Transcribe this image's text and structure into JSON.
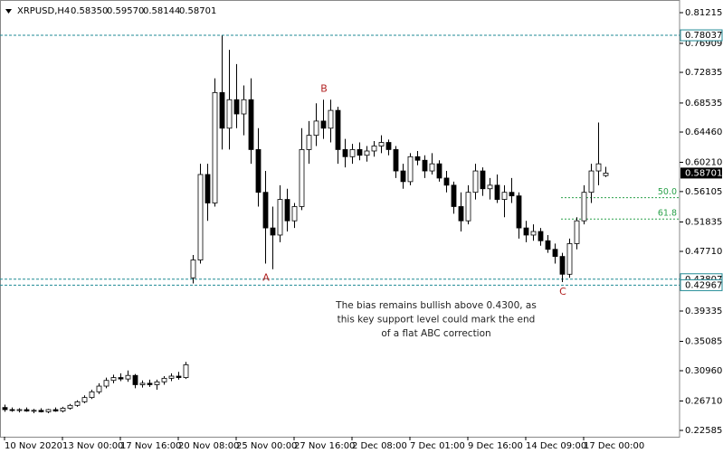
{
  "chart_data": {
    "type": "candlestick",
    "header": {
      "symbol": "XRPUSD,H4",
      "ohlc": [
        "0.58350",
        "0.59570",
        "0.58144",
        "0.58701"
      ]
    },
    "categories": [
      "10 Nov 2020",
      null,
      null,
      null,
      null,
      null,
      null,
      null,
      "13 Nov 00:00",
      null,
      null,
      null,
      null,
      null,
      null,
      null,
      "17 Nov 16:00",
      null,
      null,
      null,
      null,
      null,
      null,
      null,
      "20 Nov 08:00",
      null,
      null,
      null,
      null,
      null,
      null,
      null,
      "25 Nov 00:00",
      null,
      null,
      null,
      null,
      null,
      null,
      null,
      "27 Nov 16:00",
      null,
      null,
      null,
      null,
      null,
      null,
      null,
      "2 Dec 08:00",
      null,
      null,
      null,
      null,
      null,
      null,
      null,
      "7 Dec 01:00",
      null,
      null,
      null,
      null,
      null,
      null,
      null,
      "9 Dec 16:00",
      null,
      null,
      null,
      null,
      null,
      null,
      null,
      "14 Dec 09:00",
      null,
      null,
      null,
      null,
      null,
      null,
      null,
      "17 Dec 00:00",
      null,
      null,
      null
    ],
    "open": [
      0.258,
      0.255,
      0.254,
      0.255,
      0.253,
      0.254,
      0.252,
      0.255,
      0.253,
      0.257,
      0.261,
      0.266,
      0.272,
      0.28,
      0.288,
      0.296,
      0.3,
      0.298,
      0.303,
      0.29,
      0.292,
      0.29,
      0.294,
      0.299,
      0.302,
      0.3,
      0.44,
      0.465,
      0.585,
      0.545,
      0.7,
      0.65,
      0.69,
      0.67,
      0.69,
      0.62,
      0.56,
      0.51,
      0.5,
      0.55,
      0.52,
      0.54,
      0.62,
      0.64,
      0.66,
      0.65,
      0.675,
      0.62,
      0.61,
      0.62,
      0.612,
      0.618,
      0.625,
      0.63,
      0.62,
      0.59,
      0.575,
      0.61,
      0.605,
      0.59,
      0.6,
      0.58,
      0.57,
      0.54,
      0.52,
      0.56,
      0.59,
      0.565,
      0.57,
      0.55,
      0.56,
      0.555,
      0.51,
      0.5,
      0.505,
      0.492,
      0.48,
      0.47,
      0.445,
      0.488,
      0.52,
      0.56,
      0.59,
      0.5835
    ],
    "high": [
      0.262,
      0.258,
      0.257,
      0.258,
      0.256,
      0.257,
      0.256,
      0.258,
      0.259,
      0.263,
      0.268,
      0.275,
      0.283,
      0.292,
      0.3,
      0.304,
      0.306,
      0.31,
      0.305,
      0.296,
      0.297,
      0.297,
      0.302,
      0.306,
      0.308,
      0.322,
      0.472,
      0.6,
      0.6,
      0.72,
      0.78,
      0.76,
      0.74,
      0.71,
      0.72,
      0.65,
      0.59,
      0.54,
      0.57,
      0.565,
      0.545,
      0.65,
      0.66,
      0.685,
      0.69,
      0.69,
      0.68,
      0.635,
      0.628,
      0.63,
      0.625,
      0.632,
      0.64,
      0.634,
      0.625,
      0.6,
      0.615,
      0.618,
      0.612,
      0.615,
      0.605,
      0.59,
      0.575,
      0.56,
      0.57,
      0.6,
      0.595,
      0.58,
      0.585,
      0.57,
      0.58,
      0.56,
      0.52,
      0.515,
      0.51,
      0.5,
      0.488,
      0.475,
      0.495,
      0.525,
      0.57,
      0.6,
      0.658,
      0.5957
    ],
    "low": [
      0.252,
      0.252,
      0.251,
      0.252,
      0.25,
      0.251,
      0.25,
      0.252,
      0.251,
      0.255,
      0.259,
      0.264,
      0.27,
      0.277,
      0.285,
      0.292,
      0.295,
      0.294,
      0.285,
      0.286,
      0.287,
      0.283,
      0.29,
      0.295,
      0.297,
      0.298,
      0.432,
      0.46,
      0.52,
      0.54,
      0.62,
      0.62,
      0.65,
      0.64,
      0.6,
      0.54,
      0.46,
      0.452,
      0.49,
      0.505,
      0.51,
      0.535,
      0.6,
      0.625,
      0.635,
      0.63,
      0.6,
      0.595,
      0.6,
      0.605,
      0.603,
      0.61,
      0.615,
      0.612,
      0.58,
      0.565,
      0.57,
      0.598,
      0.58,
      0.585,
      0.575,
      0.56,
      0.53,
      0.505,
      0.515,
      0.55,
      0.555,
      0.55,
      0.545,
      0.525,
      0.545,
      0.495,
      0.49,
      0.492,
      0.485,
      0.475,
      0.46,
      0.434,
      0.44,
      0.48,
      0.515,
      0.545,
      0.57,
      0.58144
    ],
    "close": [
      0.255,
      0.254,
      0.255,
      0.253,
      0.254,
      0.252,
      0.255,
      0.253,
      0.257,
      0.261,
      0.266,
      0.272,
      0.28,
      0.288,
      0.296,
      0.3,
      0.298,
      0.303,
      0.29,
      0.292,
      0.29,
      0.294,
      0.299,
      0.302,
      0.3,
      0.318,
      0.465,
      0.585,
      0.545,
      0.7,
      0.65,
      0.69,
      0.67,
      0.69,
      0.62,
      0.56,
      0.51,
      0.5,
      0.55,
      0.52,
      0.54,
      0.62,
      0.64,
      0.66,
      0.65,
      0.675,
      0.62,
      0.61,
      0.62,
      0.612,
      0.618,
      0.625,
      0.63,
      0.62,
      0.59,
      0.575,
      0.61,
      0.605,
      0.59,
      0.6,
      0.58,
      0.57,
      0.54,
      0.52,
      0.56,
      0.59,
      0.565,
      0.57,
      0.55,
      0.56,
      0.555,
      0.51,
      0.5,
      0.505,
      0.492,
      0.48,
      0.47,
      0.445,
      0.488,
      0.52,
      0.56,
      0.59,
      0.6,
      0.58701
    ],
    "ylim": [
      0.21697,
      0.82357
    ],
    "yticks": [
      0.81215,
      0.76909,
      0.72835,
      0.68535,
      {
        "value": 0.6446,
        "label": "0.64460"
      },
      {
        "value": 0.6021,
        "label": "0.60210"
      },
      0.56105,
      0.51835,
      {
        "value": 0.4771,
        "label": "0.47710"
      },
      0.39335,
      0.35085,
      {
        "value": 0.3096,
        "label": "0.30960"
      },
      {
        "value": 0.2671,
        "label": "0.26710"
      },
      0.22585
    ],
    "levels": [
      0.78037,
      0.43807,
      0.42967
    ],
    "fib_levels": [
      {
        "label": "50.0",
        "price": 0.5525
      },
      {
        "label": "61.8",
        "price": 0.5225
      }
    ],
    "annotations": [
      {
        "text": "A",
        "x": 36,
        "y": 0.44
      },
      {
        "text": "B",
        "x": 44,
        "y": 0.705
      },
      {
        "text": "C",
        "x": 77,
        "y": 0.42
      }
    ],
    "note": [
      "The bias remains bullish above 0.4300, as",
      "this key support level could mark the end",
      "of a flat ABC correction"
    ]
  }
}
